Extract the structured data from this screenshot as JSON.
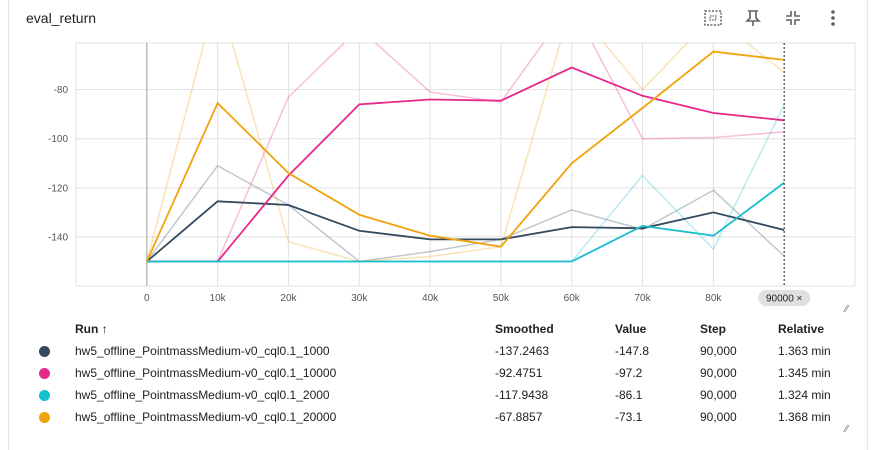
{
  "header": {
    "title": "eval_return",
    "tools": [
      {
        "name": "fit-domain-icon"
      },
      {
        "name": "pin-icon"
      },
      {
        "name": "collapse-icon"
      },
      {
        "name": "more-vert-icon"
      }
    ]
  },
  "colors": {
    "run_1000": "#34495e",
    "run_10000": "#e7298a",
    "run_2000": "#17becf",
    "run_20000": "#f0a30a"
  },
  "chart_data": {
    "type": "line",
    "x_tick_labels": [
      "0",
      "10k",
      "20k",
      "30k",
      "40k",
      "50k",
      "60k",
      "70k",
      "80k"
    ],
    "x_ticks": [
      0,
      10000,
      20000,
      30000,
      40000,
      50000,
      60000,
      70000,
      80000
    ],
    "y_tick_labels": [
      "-80",
      "-100",
      "-120",
      "-140"
    ],
    "y_ticks": [
      -80,
      -100,
      -120,
      -140
    ],
    "xlim": [
      -10000,
      100000
    ],
    "ylim": [
      -160,
      -61
    ],
    "grid": true,
    "cursor_x": 90000,
    "cursor_label": "90000 ×",
    "x": [
      0,
      10000,
      20000,
      30000,
      40000,
      50000,
      60000,
      70000,
      80000,
      90000
    ],
    "series": [
      {
        "name": "hw5_offline_PointmassMedium-v0_cql0.1_1000",
        "smoothed": [
          -150,
          -125.5,
          -127,
          -137.5,
          -141,
          -141,
          -136,
          -136.5,
          -130,
          -137.2
        ],
        "raw": [
          -150,
          -111,
          -127,
          -150,
          -146,
          -141,
          -129,
          -137,
          -121,
          -147.8
        ]
      },
      {
        "name": "hw5_offline_PointmassMedium-v0_cql0.1_10000",
        "smoothed": [
          -150,
          -150,
          -115,
          -86,
          -84,
          -84.5,
          -71,
          -82.5,
          -89.5,
          -92.5
        ],
        "raw": [
          -150,
          -150,
          -83,
          -55,
          -81,
          -85,
          -45,
          -100,
          -99.5,
          -97.2
        ]
      },
      {
        "name": "hw5_offline_PointmassMedium-v0_cql0.1_2000",
        "smoothed": [
          -150,
          -150,
          -150,
          -150,
          -150,
          -150,
          -150,
          -135.5,
          -139.5,
          -117.9
        ],
        "raw": [
          -150,
          -150,
          -150,
          -150,
          -150,
          -150,
          -150,
          -115,
          -145,
          -86.1
        ]
      },
      {
        "name": "hw5_offline_PointmassMedium-v0_cql0.1_20000",
        "smoothed": [
          -150,
          -85.5,
          -114,
          -131,
          -139.5,
          -144,
          -110,
          -87.5,
          -64.5,
          -67.9
        ],
        "raw": [
          -150,
          -40,
          -142,
          -150,
          -148,
          -144,
          -45,
          -80,
          -50,
          -73.1
        ]
      }
    ]
  },
  "table": {
    "headers": {
      "run": "Run ↑",
      "smoothed": "Smoothed",
      "value": "Value",
      "step": "Step",
      "relative": "Relative"
    },
    "rows": [
      {
        "run": "hw5_offline_PointmassMedium-v0_cql0.1_1000",
        "smoothed": "-137.2463",
        "value": "-147.8",
        "step": "90,000",
        "relative": "1.363 min"
      },
      {
        "run": "hw5_offline_PointmassMedium-v0_cql0.1_10000",
        "smoothed": "-92.4751",
        "value": "-97.2",
        "step": "90,000",
        "relative": "1.345 min"
      },
      {
        "run": "hw5_offline_PointmassMedium-v0_cql0.1_2000",
        "smoothed": "-117.9438",
        "value": "-86.1",
        "step": "90,000",
        "relative": "1.324 min"
      },
      {
        "run": "hw5_offline_PointmassMedium-v0_cql0.1_20000",
        "smoothed": "-67.8857",
        "value": "-73.1",
        "step": "90,000",
        "relative": "1.368 min"
      }
    ]
  }
}
